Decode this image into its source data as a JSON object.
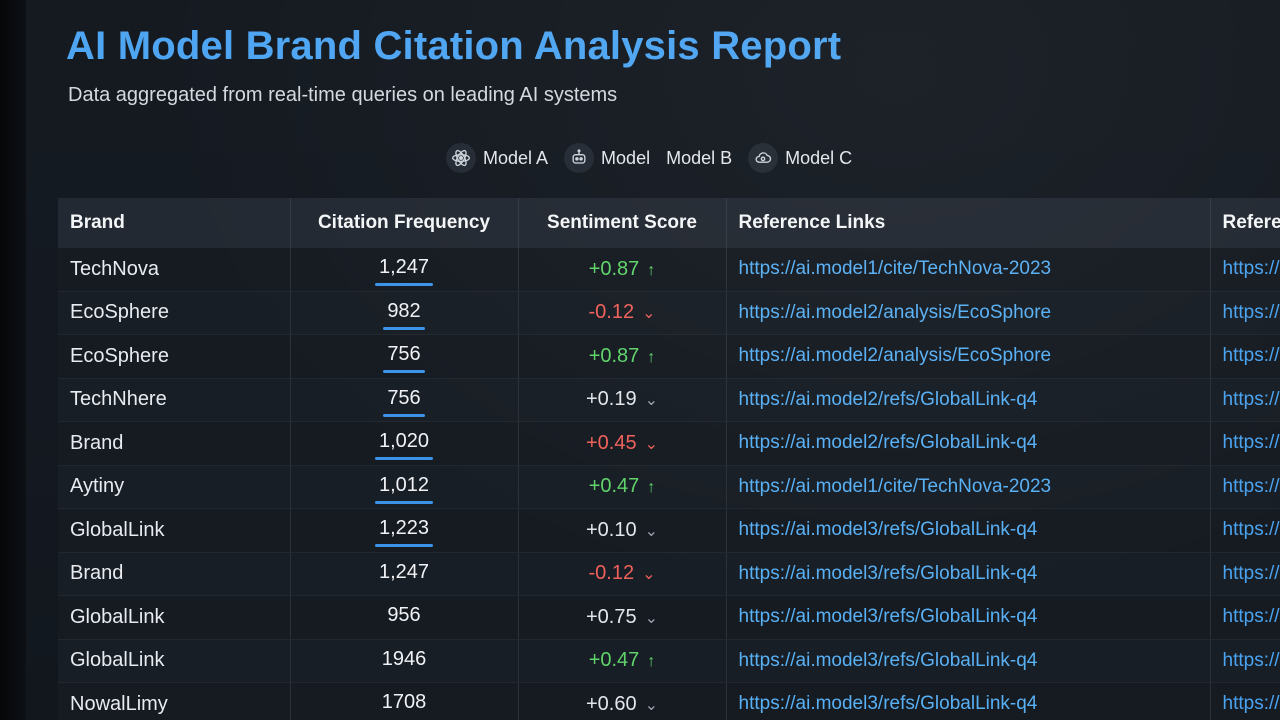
{
  "report": {
    "title": "AI Model Brand Citation Analysis Report",
    "subtitle": "Data aggregated from real-time queries on leading AI systems"
  },
  "legend": [
    {
      "label": "Model A",
      "icon": "atom-icon"
    },
    {
      "label": "Model",
      "icon": "robot-icon"
    },
    {
      "label": "Model B",
      "icon": ""
    },
    {
      "label": "Model C",
      "icon": "cloud-gear-icon"
    }
  ],
  "table": {
    "headers": [
      "Brand",
      "Citation Frequency",
      "Sentiment Score",
      "Reference Links",
      "Refere"
    ],
    "rows": [
      {
        "brand": "TechNova",
        "frequency": "1,247",
        "sentiment": "+0.87",
        "trend": "up",
        "link": "https://ai.model1/cite/TechNova-2023",
        "link2": "https://"
      },
      {
        "brand": "EcoSphere",
        "frequency": "982",
        "sentiment": "-0.12",
        "trend": "down",
        "link": "https://ai.model2/analysis/EcoSphore",
        "link2": "https://"
      },
      {
        "brand": "EcoSphere",
        "frequency": "756",
        "sentiment": "+0.87",
        "trend": "up",
        "link": "https://ai.model2/analysis/EcoSphore",
        "link2": "https://"
      },
      {
        "brand": "TechNhere",
        "frequency": "756",
        "sentiment": "+0.19",
        "trend": "neutral",
        "link": "https://ai.model2/refs/GlobalLink-q4",
        "link2": "https://"
      },
      {
        "brand": "Brand",
        "frequency": "1,020",
        "sentiment": "+0.45",
        "trend": "down",
        "link": "https://ai.model2/refs/GlobalLink-q4",
        "link2": "https://"
      },
      {
        "brand": "Aytiny",
        "frequency": "1,012",
        "sentiment": "+0.47",
        "trend": "up",
        "link": "https://ai.model1/cite/TechNova-2023",
        "link2": "https://"
      },
      {
        "brand": "GlobalLink",
        "frequency": "1,223",
        "sentiment": "+0.10",
        "trend": "neutral",
        "link": "https://ai.model3/refs/GlobalLink-q4",
        "link2": "https://"
      },
      {
        "brand": "Brand",
        "frequency": "1,247",
        "sentiment": "-0.12",
        "trend": "down",
        "link": "https://ai.model3/refs/GlobalLink-q4",
        "link2": "https://"
      },
      {
        "brand": "GlobalLink",
        "frequency": "956",
        "sentiment": "+0.75",
        "trend": "neutral",
        "link": "https://ai.model3/refs/GlobalLink-q4",
        "link2": "https://"
      },
      {
        "brand": "GlobalLink",
        "frequency": "1946",
        "sentiment": "+0.47",
        "trend": "up",
        "link": "https://ai.model3/refs/GlobalLink-q4",
        "link2": "https://"
      },
      {
        "brand": "NowalLimy",
        "frequency": "1708",
        "sentiment": "+0.60",
        "trend": "neutral",
        "link": "https://ai.model3/refs/GlobalLink-q4",
        "link2": "https://"
      }
    ]
  },
  "colors": {
    "title": "#4ea5f2",
    "positive": "#5fd46a",
    "negative": "#f0605a",
    "link": "#58b0f5",
    "underline": "#3b93e8"
  }
}
